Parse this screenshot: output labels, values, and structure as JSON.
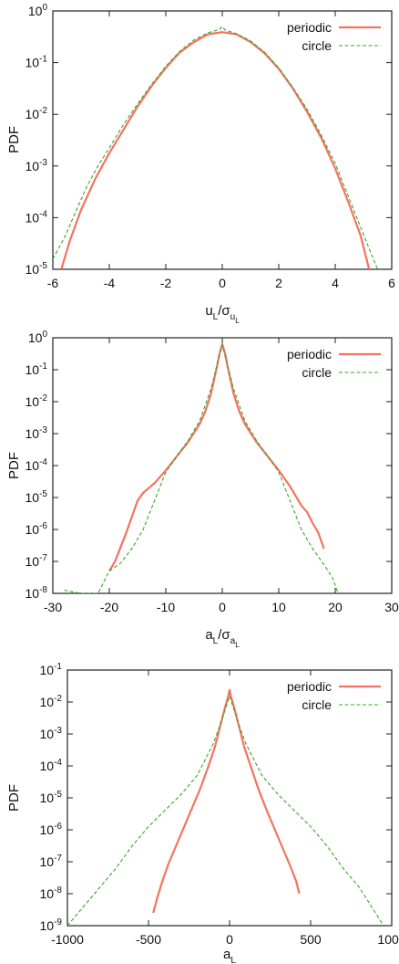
{
  "chart_data": [
    {
      "type": "line",
      "ylabel": "PDF",
      "xlabel_main": "u",
      "xlabel_sub": "L",
      "xlabel_rest": "/σ",
      "xlabel_sub2": "u",
      "xlabel_subsub": "L",
      "xlim": [
        -6,
        6
      ],
      "ylim_exp": [
        -5,
        0
      ],
      "log_y": true,
      "x_ticks": [
        "-6",
        "-4",
        "-2",
        "0",
        "2",
        "4",
        "6"
      ],
      "x_tick_values": [
        -6,
        -4,
        -2,
        0,
        2,
        4,
        6
      ],
      "y_tick_exps": [
        "0",
        "-1",
        "-2",
        "-3",
        "-4",
        "-5"
      ],
      "y_tick_base": "10",
      "legend_position": "top-right",
      "series": [
        {
          "name": "periodic",
          "color": "#f4735e",
          "dash": false,
          "x": [
            -5.7,
            -5.4,
            -5.0,
            -4.5,
            -4.0,
            -3.5,
            -3.0,
            -2.5,
            -2.0,
            -1.5,
            -1.0,
            -0.5,
            0.0,
            0.5,
            1.0,
            1.5,
            2.0,
            2.5,
            3.0,
            3.5,
            4.0,
            4.5,
            4.9,
            5.2
          ],
          "log10y": [
            -5.0,
            -4.45,
            -3.85,
            -3.25,
            -2.75,
            -2.3,
            -1.85,
            -1.45,
            -1.1,
            -0.8,
            -0.6,
            -0.45,
            -0.41,
            -0.45,
            -0.6,
            -0.82,
            -1.12,
            -1.5,
            -1.95,
            -2.45,
            -3.05,
            -3.75,
            -4.35,
            -5.0
          ]
        },
        {
          "name": "circle",
          "color": "#3aa62a",
          "dash": true,
          "x": [
            -6.0,
            -5.6,
            -5.2,
            -4.8,
            -4.4,
            -4.0,
            -3.5,
            -3.0,
            -2.5,
            -2.0,
            -1.5,
            -1.0,
            -0.5,
            -0.1,
            0.0,
            0.1,
            0.5,
            1.0,
            1.5,
            2.0,
            2.5,
            3.0,
            3.5,
            4.0,
            4.4,
            4.8,
            5.2,
            5.5
          ],
          "log10y": [
            -4.8,
            -4.4,
            -3.9,
            -3.4,
            -3.0,
            -2.65,
            -2.2,
            -1.8,
            -1.42,
            -1.07,
            -0.78,
            -0.56,
            -0.42,
            -0.36,
            -0.3,
            -0.37,
            -0.44,
            -0.58,
            -0.8,
            -1.1,
            -1.48,
            -1.9,
            -2.4,
            -2.95,
            -3.5,
            -4.05,
            -4.6,
            -5.0
          ]
        }
      ]
    },
    {
      "type": "line",
      "ylabel": "PDF",
      "xlabel_main": "a",
      "xlabel_sub": "L",
      "xlabel_rest": "/σ",
      "xlabel_sub2": "a",
      "xlabel_subsub": "L",
      "xlim": [
        -30,
        30
      ],
      "ylim_exp": [
        -8,
        0
      ],
      "log_y": true,
      "x_ticks": [
        "-30",
        "-20",
        "-10",
        "0",
        "10",
        "20",
        "30"
      ],
      "x_tick_values": [
        -30,
        -20,
        -10,
        0,
        10,
        20,
        30
      ],
      "y_tick_exps": [
        "0",
        "-1",
        "-2",
        "-3",
        "-4",
        "-5",
        "-6",
        "-7",
        "-8"
      ],
      "y_tick_base": "10",
      "legend_position": "top-right",
      "series": [
        {
          "name": "periodic",
          "color": "#f4735e",
          "dash": false,
          "x": [
            -20.0,
            -19.0,
            -18.0,
            -17.0,
            -16.0,
            -15.0,
            -14.0,
            -12.0,
            -10.0,
            -8.0,
            -6.0,
            -4.0,
            -3.0,
            -2.0,
            -1.0,
            -0.5,
            0.0,
            0.5,
            1.0,
            2.0,
            3.0,
            4.0,
            6.0,
            8.0,
            10.0,
            12.0,
            14.0,
            15.0,
            16.0,
            17.0,
            18.0
          ],
          "log10y": [
            -7.3,
            -7.0,
            -6.55,
            -6.1,
            -5.6,
            -5.1,
            -4.85,
            -4.55,
            -4.15,
            -3.7,
            -3.25,
            -2.7,
            -2.3,
            -1.75,
            -0.95,
            -0.5,
            -0.2,
            -0.5,
            -0.95,
            -1.75,
            -2.3,
            -2.7,
            -3.25,
            -3.7,
            -4.15,
            -4.65,
            -5.25,
            -5.45,
            -5.8,
            -6.1,
            -6.6
          ]
        },
        {
          "name": "circle",
          "color": "#3aa62a",
          "dash": true,
          "x": [
            -28.0,
            -25.0,
            -22.0,
            -20.0,
            -18.0,
            -16.0,
            -14.0,
            -12.0,
            -10.0,
            -8.0,
            -6.0,
            -4.0,
            -2.0,
            -1.0,
            0.0,
            1.0,
            2.0,
            4.0,
            6.0,
            8.0,
            10.0,
            12.0,
            14.0,
            16.0,
            18.0,
            19.5,
            20.5
          ],
          "log10y": [
            -7.9,
            -8.0,
            -8.0,
            -7.3,
            -7.05,
            -6.6,
            -6.0,
            -5.1,
            -4.2,
            -3.7,
            -3.2,
            -2.6,
            -1.6,
            -0.9,
            -0.22,
            -0.9,
            -1.6,
            -2.6,
            -3.2,
            -3.7,
            -4.2,
            -5.1,
            -6.0,
            -6.6,
            -7.1,
            -7.5,
            -8.0
          ]
        }
      ]
    },
    {
      "type": "line",
      "ylabel": "PDF",
      "xlabel_main": "a",
      "xlabel_sub": "L",
      "xlim": [
        -1000,
        1000
      ],
      "ylim_exp": [
        -9,
        -1
      ],
      "log_y": true,
      "x_ticks": [
        "-1000",
        "-500",
        "0",
        "500",
        "1000"
      ],
      "x_tick_values": [
        -1000,
        -500,
        0,
        500,
        1000
      ],
      "y_tick_exps": [
        "-1",
        "-2",
        "-3",
        "-4",
        "-5",
        "-6",
        "-7",
        "-8",
        "-9"
      ],
      "y_tick_base": "10",
      "legend_position": "top-right",
      "series": [
        {
          "name": "periodic",
          "color": "#f4735e",
          "dash": false,
          "x": [
            -470,
            -450,
            -420,
            -380,
            -330,
            -280,
            -230,
            -180,
            -130,
            -90,
            -60,
            -30,
            -10,
            0,
            10,
            30,
            60,
            90,
            130,
            180,
            230,
            280,
            330,
            380,
            410,
            430
          ],
          "log10y": [
            -8.6,
            -8.2,
            -7.7,
            -7.1,
            -6.5,
            -5.9,
            -5.3,
            -4.7,
            -4.0,
            -3.4,
            -2.8,
            -2.2,
            -1.85,
            -1.62,
            -1.85,
            -2.2,
            -2.8,
            -3.4,
            -4.0,
            -4.75,
            -5.4,
            -6.0,
            -6.6,
            -7.2,
            -7.6,
            -8.0
          ]
        },
        {
          "name": "circle",
          "color": "#3aa62a",
          "dash": true,
          "x": [
            -1000,
            -950,
            -900,
            -850,
            -800,
            -700,
            -600,
            -500,
            -400,
            -300,
            -200,
            -100,
            -50,
            0,
            50,
            100,
            200,
            300,
            400,
            500,
            600,
            700,
            800,
            850,
            900,
            950
          ],
          "log10y": [
            -9.0,
            -8.7,
            -8.4,
            -8.1,
            -7.8,
            -7.2,
            -6.5,
            -5.9,
            -5.4,
            -4.9,
            -4.3,
            -3.3,
            -2.6,
            -1.82,
            -2.6,
            -3.3,
            -4.3,
            -4.9,
            -5.4,
            -5.9,
            -6.5,
            -7.2,
            -7.8,
            -8.2,
            -8.6,
            -9.0
          ]
        }
      ]
    }
  ]
}
